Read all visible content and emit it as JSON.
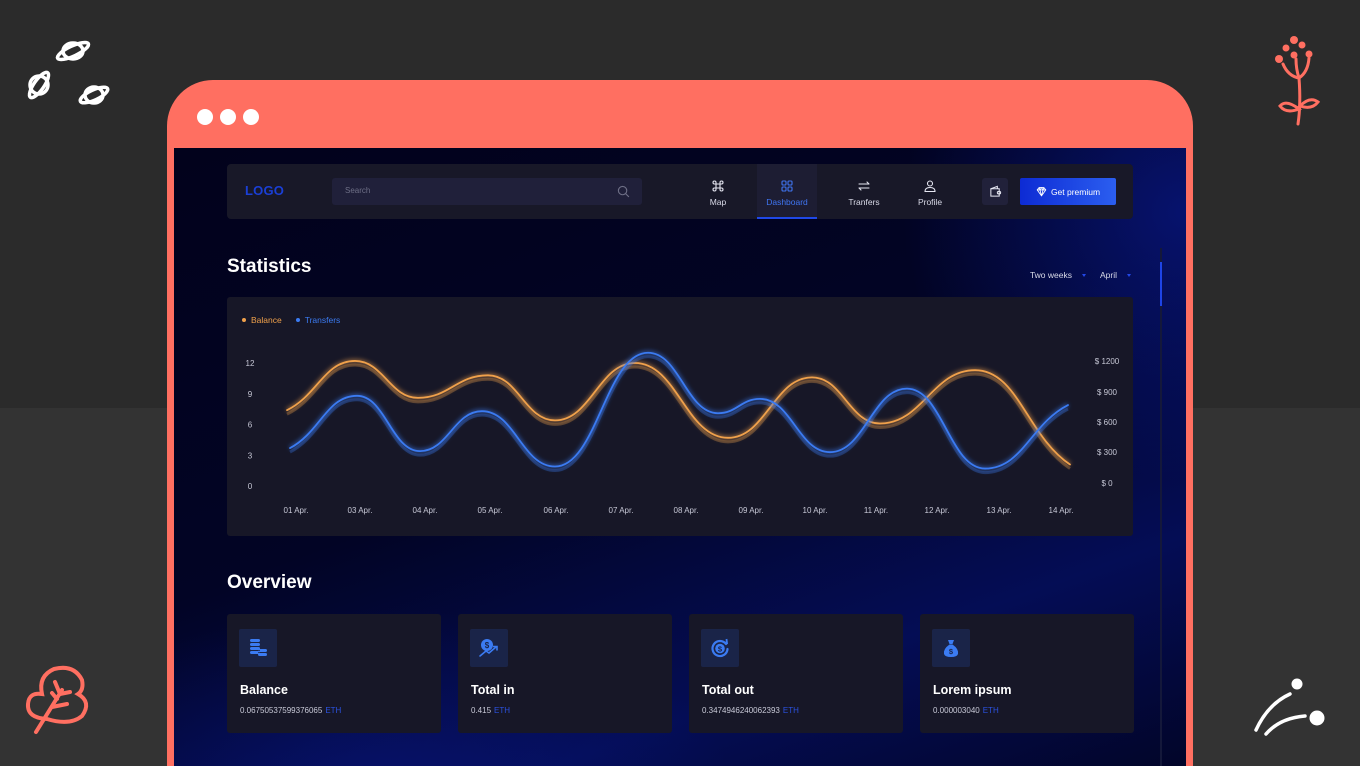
{
  "window": {
    "dots": 3,
    "frame_color": "#ff6f61"
  },
  "navbar": {
    "logo": "LOGO",
    "search": {
      "placeholder": "Search",
      "value": ""
    },
    "items": [
      {
        "label": "Map",
        "icon": "command-icon",
        "active": false
      },
      {
        "label": "Dashboard",
        "icon": "grid-icon",
        "active": true
      },
      {
        "label": "Tranfers",
        "icon": "arrows-swap-icon",
        "active": false
      },
      {
        "label": "Profile",
        "icon": "user-icon",
        "active": false
      }
    ],
    "wallet_icon": "wallet-icon",
    "premium_label": "Get premium"
  },
  "statistics": {
    "title": "Statistics",
    "filters": {
      "range": "Two weeks",
      "month": "April"
    },
    "legend": [
      {
        "label": "Balance",
        "color": "#f0a14b"
      },
      {
        "label": "Transfers",
        "color": "#3b7bf2"
      }
    ]
  },
  "chart_data": {
    "type": "line",
    "title": "Statistics",
    "categories": [
      "01 Apr.",
      "03 Apr.",
      "04 Apr.",
      "05 Apr.",
      "06 Apr.",
      "07 Apr.",
      "08 Apr.",
      "09 Apr.",
      "10 Apr.",
      "11 Apr.",
      "12 Apr.",
      "13 Apr.",
      "14 Apr."
    ],
    "y_left": {
      "ticks": [
        "0",
        "3",
        "6",
        "9",
        "12"
      ],
      "range": [
        0,
        12
      ]
    },
    "y_right": {
      "ticks": [
        "$ 0",
        "$ 300",
        "$ 600",
        "$ 900",
        "$ 1200"
      ],
      "range": [
        0,
        1200
      ]
    },
    "series": [
      {
        "name": "Balance",
        "color": "#f0a14b",
        "points": [
          [
            287,
            7.4
          ],
          [
            355,
            12.2
          ],
          [
            418,
            8.6
          ],
          [
            488,
            10.8
          ],
          [
            555,
            6.4
          ],
          [
            635,
            12.0
          ],
          [
            728,
            4.7
          ],
          [
            812,
            10.6
          ],
          [
            880,
            6.1
          ],
          [
            975,
            11.3
          ],
          [
            1070,
            2.1
          ]
        ]
      },
      {
        "name": "Transfers",
        "color": "#3b7bf2",
        "points": [
          [
            290,
            3.7
          ],
          [
            357,
            8.8
          ],
          [
            420,
            3.4
          ],
          [
            482,
            7.3
          ],
          [
            555,
            1.9
          ],
          [
            648,
            13.0
          ],
          [
            718,
            7.1
          ],
          [
            760,
            8.5
          ],
          [
            830,
            3.3
          ],
          [
            907,
            9.5
          ],
          [
            985,
            1.7
          ],
          [
            1068,
            7.9
          ]
        ]
      }
    ],
    "grid": false,
    "legend_position": "top-left"
  },
  "overview": {
    "title": "Overview",
    "cards": [
      {
        "title": "Balance",
        "value": "0.06750537599376065",
        "unit": "ETH",
        "icon": "coins-stack-icon"
      },
      {
        "title": "Total in",
        "value": "0.415",
        "unit": "ETH",
        "icon": "dollar-trend-up-icon"
      },
      {
        "title": "Total out",
        "value": "0.3474946240062393",
        "unit": "ETH",
        "icon": "dollar-refresh-icon"
      },
      {
        "title": "Lorem ipsum",
        "value": "0.000003040",
        "unit": "ETH",
        "icon": "money-bag-icon"
      }
    ]
  }
}
